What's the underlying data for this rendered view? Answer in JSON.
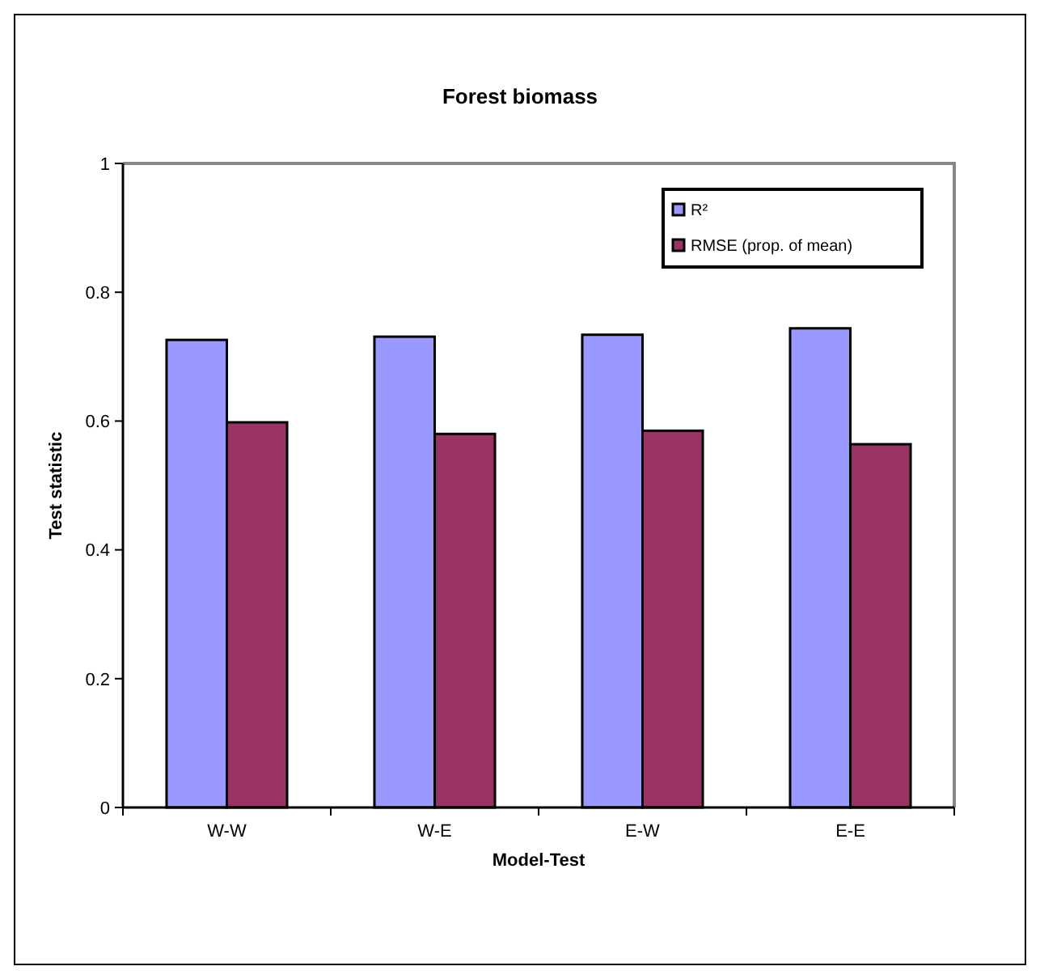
{
  "chart_data": {
    "type": "bar",
    "title": "Forest biomass",
    "xlabel": "Model-Test",
    "ylabel": "Test statistic",
    "categories": [
      "W-W",
      "W-E",
      "E-W",
      "E-E"
    ],
    "series": [
      {
        "name": "R²",
        "color": "#9999ff",
        "values": [
          0.726,
          0.731,
          0.734,
          0.744
        ]
      },
      {
        "name": "RMSE (prop. of mean)",
        "color": "#993366",
        "values": [
          0.598,
          0.58,
          0.585,
          0.564
        ]
      }
    ],
    "ylim": [
      0,
      1
    ],
    "yticks": [
      0,
      0.2,
      0.4,
      0.6,
      0.8,
      1
    ],
    "grid": false,
    "legend": "top right"
  }
}
